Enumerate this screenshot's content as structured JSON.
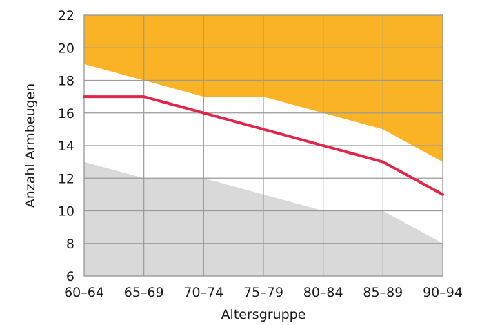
{
  "chart_data": {
    "type": "area",
    "title": "",
    "xlabel": "Altersgruppe",
    "ylabel": "Anzahl Armbeugen",
    "categories": [
      "60–64",
      "65–69",
      "70–74",
      "75–79",
      "80–84",
      "85–89",
      "90–94"
    ],
    "ylim": [
      6,
      22
    ],
    "yticks": [
      6,
      8,
      10,
      12,
      14,
      16,
      18,
      20,
      22
    ],
    "grid": true,
    "series": [
      {
        "role": "upper-band-lower-edge",
        "values": [
          19,
          18,
          17,
          17,
          16,
          15,
          13
        ],
        "color": "#FAB325"
      },
      {
        "role": "lower-band-upper-edge",
        "values": [
          13,
          12,
          12,
          11,
          10,
          10,
          8
        ],
        "color": "#D9D9D9"
      },
      {
        "role": "median-line",
        "values": [
          17,
          17,
          16,
          15,
          14,
          13,
          11
        ],
        "color": "#E0264A"
      }
    ]
  }
}
